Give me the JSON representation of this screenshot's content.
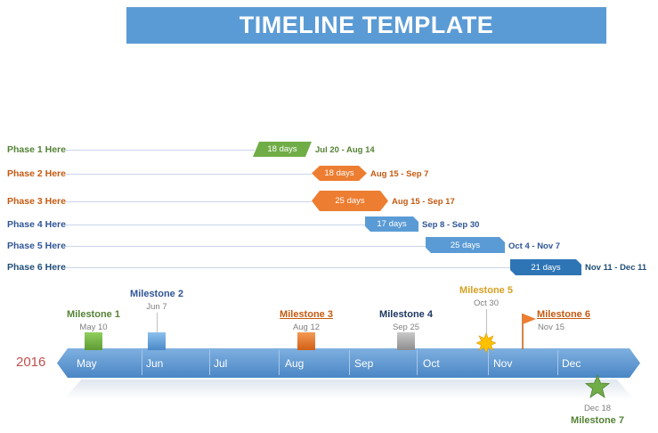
{
  "title": "TIMELINE TEMPLATE",
  "year": "2016",
  "colors": {
    "banner": "#5b9bd5",
    "green": "#70ad47",
    "orange": "#ed7d31",
    "blue": "#5b9bd5",
    "dark_blue": "#2e75b6",
    "gold": "#d5a021",
    "gray": "#a5a5a5",
    "year": "#c0504d"
  },
  "phases": [
    {
      "label": "Phase 1 Here",
      "duration": "18 days",
      "dates": "Jul 20 - Aug 14"
    },
    {
      "label": "Phase 2 Here",
      "duration": "18 days",
      "dates": "Aug 15 - Sep 7"
    },
    {
      "label": "Phase 3 Here",
      "duration": "25 days",
      "dates": "Aug 15 - Sep 17"
    },
    {
      "label": "Phase 4 Here",
      "duration": "17 days",
      "dates": "Sep 8 - Sep 30"
    },
    {
      "label": "Phase 5 Here",
      "duration": "25 days",
      "dates": "Oct 4 - Nov 7"
    },
    {
      "label": "Phase 6 Here",
      "duration": "21 days",
      "dates": "Nov 11 - Dec 11"
    }
  ],
  "months": [
    "May",
    "Jun",
    "Jul",
    "Aug",
    "Sep",
    "Oct",
    "Nov",
    "Dec"
  ],
  "milestones": [
    {
      "name": "Milestone 1",
      "date": "May 10",
      "shape": "square",
      "color": "green"
    },
    {
      "name": "Milestone 2",
      "date": "Jun 7",
      "shape": "square",
      "color": "blue"
    },
    {
      "name": "Milestone 3",
      "date": "Aug 12",
      "shape": "square",
      "color": "orange"
    },
    {
      "name": "Milestone 4",
      "date": "Sep 25",
      "shape": "square",
      "color": "gray"
    },
    {
      "name": "Milestone 5",
      "date": "Oct 30",
      "shape": "starburst",
      "color": "gold"
    },
    {
      "name": "Milestone 6",
      "date": "Nov 15",
      "shape": "flag",
      "color": "orange"
    },
    {
      "name": "Milestone 7",
      "date": "Dec 18",
      "shape": "star",
      "color": "green"
    }
  ]
}
